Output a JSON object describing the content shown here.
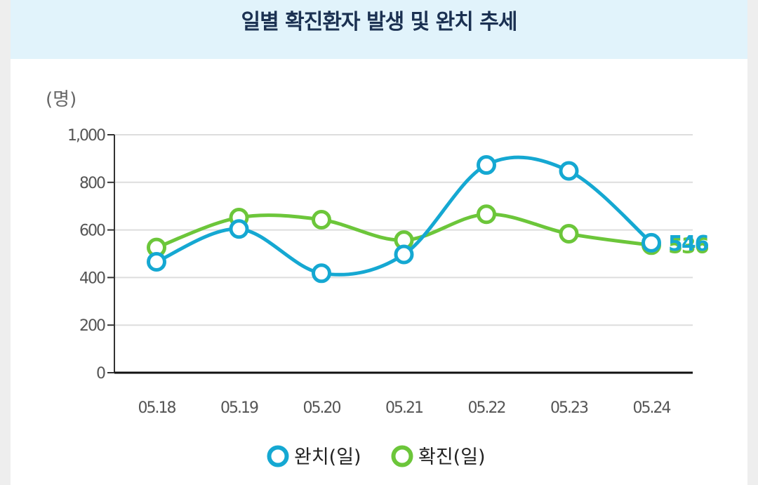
{
  "chart_data": {
    "type": "line",
    "title": "일별 확진환자 발생 및 완치 추세",
    "ylabel": "(명)",
    "x": [
      "05.18",
      "05.19",
      "05.20",
      "05.21",
      "05.22",
      "05.23",
      "05.24"
    ],
    "yticks": [
      "0",
      "200",
      "400",
      "600",
      "800",
      "1,000"
    ],
    "ylim": [
      0,
      1000
    ],
    "grid": true,
    "legend_position": "bottom",
    "series": [
      {
        "name": "완치(일)",
        "color": "#15a8d2",
        "values": [
          466,
          604,
          418,
          497,
          873,
          848,
          546
        ],
        "end_label": "546"
      },
      {
        "name": "확진(일)",
        "color": "#6cc63a",
        "values": [
          526,
          652,
          643,
          557,
          666,
          584,
          536
        ],
        "end_label": "536"
      }
    ]
  }
}
